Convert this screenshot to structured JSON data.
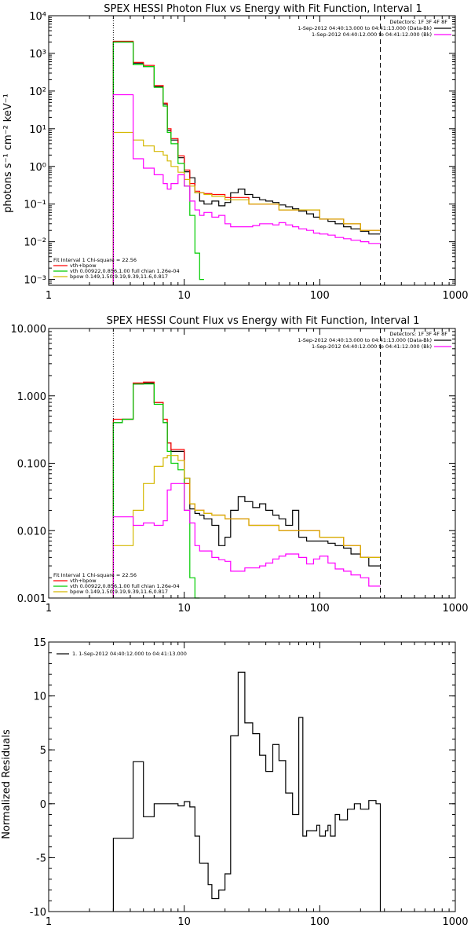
{
  "colors": {
    "total": "#ff0000",
    "vth": "#00cc00",
    "bpow": "#d4b800",
    "data": "#000000",
    "background": "#ff00ff"
  },
  "chart_data": [
    {
      "type": "line",
      "title": "SPEX HESSI Photon Flux vs Energy with Fit Function, Interval 1",
      "ylabel": "photons s⁻¹ cm⁻² keV⁻¹",
      "xlabel": "",
      "xscale": "log",
      "yscale": "log",
      "xlim": [
        1,
        1000
      ],
      "ylim": [
        0.0007,
        10000
      ],
      "xticks": [
        {
          "v": 1,
          "label": "1"
        },
        {
          "v": 10,
          "label": "10"
        },
        {
          "v": 100,
          "label": "100"
        },
        {
          "v": 1000,
          "label": "1000"
        }
      ],
      "yticks": [
        {
          "v": 0.001,
          "label": "10⁻³"
        },
        {
          "v": 0.01,
          "label": "10⁻²"
        },
        {
          "v": 0.1,
          "label": "10⁻¹"
        },
        {
          "v": 1,
          "label": "10⁰"
        },
        {
          "v": 10,
          "label": "10¹"
        },
        {
          "v": 100,
          "label": "10²"
        },
        {
          "v": 1000,
          "label": "10³"
        },
        {
          "v": 10000,
          "label": "10⁴"
        }
      ],
      "vlines": [
        {
          "x": 3.0,
          "style": "dotted"
        },
        {
          "x": 280,
          "style": "dashed"
        }
      ],
      "top_legend": {
        "detectors": "Detectors: 1F 3F 4F 8F",
        "entries": [
          {
            "text": "1-Sep-2012 04:40:13.000 to 04:41:13.000 (Data-Bk)",
            "color": "data"
          },
          {
            "text": "1-Sep-2012 04:40:12.000 to 04:41:12.000 (Bk)",
            "color": "background"
          }
        ]
      },
      "fit_legend": {
        "header": "Fit Interval 1   Chi-square = 22.56",
        "entries": [
          {
            "text": "vth+bpow",
            "color": "total"
          },
          {
            "text": "vth 0.00922,0.856,1.00  full chian 1.26e-04",
            "color": "vth"
          },
          {
            "text": "bpow 0.149,1.50,9.19,9.39,11.6,0.817",
            "color": "bpow"
          }
        ]
      },
      "series": [
        {
          "color": "data",
          "edges": [
            3,
            3.5,
            4.2,
            5,
            6,
            7,
            7.5,
            8,
            9,
            10,
            11,
            12,
            13,
            14,
            16,
            18,
            20,
            22,
            25,
            28,
            32,
            36,
            40,
            45,
            50,
            56,
            63,
            70,
            80,
            90,
            100,
            115,
            130,
            150,
            170,
            200,
            230,
            280
          ],
          "values": [
            2000,
            2000,
            550,
            450,
            130,
            45,
            9,
            5,
            1.7,
            0.72,
            0.5,
            0.2,
            0.12,
            0.1,
            0.12,
            0.09,
            0.11,
            0.2,
            0.25,
            0.18,
            0.15,
            0.13,
            0.12,
            0.11,
            0.095,
            0.085,
            0.075,
            0.065,
            0.055,
            0.045,
            0.04,
            0.035,
            0.03,
            0.025,
            0.022,
            0.019,
            0.016
          ]
        },
        {
          "color": "total",
          "edges": [
            3,
            3.5,
            4.2,
            5,
            6,
            7,
            7.5,
            8,
            9,
            10,
            11,
            12,
            13,
            14,
            16,
            20,
            30,
            50,
            100,
            150,
            200,
            280
          ],
          "values": [
            2100,
            2100,
            580,
            480,
            140,
            48,
            10,
            5.5,
            1.9,
            0.8,
            0.35,
            0.22,
            0.2,
            0.19,
            0.18,
            0.15,
            0.1,
            0.07,
            0.04,
            0.03,
            0.02
          ]
        },
        {
          "color": "vth",
          "edges": [
            3,
            3.5,
            4.2,
            5,
            6,
            7,
            7.5,
            8,
            9,
            10,
            11,
            12,
            13,
            14
          ],
          "values": [
            2000,
            2000,
            500,
            450,
            125,
            40,
            8,
            4,
            1.2,
            0.3,
            0.05,
            0.005,
            0.001
          ]
        },
        {
          "color": "bpow",
          "edges": [
            3,
            3.5,
            4.2,
            5,
            6,
            7,
            7.5,
            8,
            9,
            10,
            11,
            12,
            14,
            16,
            20,
            30,
            50,
            100,
            150,
            200,
            280
          ],
          "values": [
            8,
            8,
            5,
            3.5,
            2.5,
            2,
            1.4,
            1.0,
            0.7,
            0.45,
            0.3,
            0.2,
            0.18,
            0.16,
            0.13,
            0.1,
            0.07,
            0.04,
            0.03,
            0.02
          ]
        },
        {
          "color": "background",
          "edges": [
            3,
            3.5,
            4.2,
            5,
            6,
            7,
            7.5,
            8,
            9,
            10,
            11,
            12,
            13,
            14,
            16,
            18,
            20,
            22,
            25,
            28,
            32,
            36,
            40,
            45,
            50,
            56,
            63,
            70,
            80,
            90,
            100,
            115,
            130,
            150,
            170,
            200,
            230,
            280
          ],
          "values": [
            80,
            80,
            1.6,
            0.9,
            0.6,
            0.35,
            0.25,
            0.35,
            0.6,
            0.3,
            0.12,
            0.07,
            0.05,
            0.06,
            0.045,
            0.05,
            0.03,
            0.025,
            0.025,
            0.025,
            0.027,
            0.03,
            0.03,
            0.028,
            0.032,
            0.028,
            0.025,
            0.022,
            0.02,
            0.017,
            0.016,
            0.015,
            0.013,
            0.012,
            0.011,
            0.01,
            0.009
          ]
        }
      ]
    },
    {
      "type": "line",
      "title": "SPEX HESSI Count Flux vs Energy with Fit Function, Interval 1",
      "xlabel": "",
      "ylabel": "",
      "xscale": "log",
      "yscale": "log",
      "xlim": [
        1,
        1000
      ],
      "ylim": [
        0.001,
        10
      ],
      "xticks": [
        {
          "v": 1,
          "label": "1"
        },
        {
          "v": 10,
          "label": "10"
        },
        {
          "v": 100,
          "label": "100"
        },
        {
          "v": 1000,
          "label": "1000"
        }
      ],
      "yticks": [
        {
          "v": 0.001,
          "label": "0.001"
        },
        {
          "v": 0.01,
          "label": "0.010"
        },
        {
          "v": 0.1,
          "label": "0.100"
        },
        {
          "v": 1,
          "label": "1.000"
        },
        {
          "v": 10,
          "label": "10.000"
        }
      ],
      "vlines": [
        {
          "x": 3.0,
          "style": "dotted"
        },
        {
          "x": 280,
          "style": "dashed"
        }
      ],
      "top_legend": {
        "detectors": "Detectors: 1F 3F 4F 8F",
        "entries": [
          {
            "text": "1-Sep-2012 04:40:13.000 to 04:41:13.000 (Data-Bk)",
            "color": "data"
          },
          {
            "text": "1-Sep-2012 04:40:12.000 to 04:41:12.000 (Bk)",
            "color": "background"
          }
        ]
      },
      "fit_legend": {
        "header": "Fit Interval 1   Chi-square = 22.56",
        "entries": [
          {
            "text": "vth+bpow",
            "color": "total"
          },
          {
            "text": "vth 0.00922,0.856,1.00  full chian 1.26e-04",
            "color": "vth"
          },
          {
            "text": "bpow 0.149,1.50,9.19,9.39,11.6,0.817",
            "color": "bpow"
          }
        ]
      },
      "series": [
        {
          "color": "data",
          "edges": [
            3,
            3.5,
            4.2,
            5,
            6,
            7,
            7.5,
            8,
            9,
            10,
            11,
            12,
            13,
            14,
            16,
            18,
            20,
            22,
            25,
            28,
            32,
            36,
            40,
            45,
            50,
            56,
            63,
            70,
            80,
            90,
            100,
            115,
            130,
            150,
            170,
            200,
            230,
            280
          ],
          "values": [
            0.4,
            0.45,
            1.5,
            1.55,
            0.8,
            0.4,
            0.2,
            0.15,
            0.15,
            0.06,
            0.021,
            0.018,
            0.017,
            0.015,
            0.012,
            0.006,
            0.008,
            0.02,
            0.032,
            0.027,
            0.022,
            0.025,
            0.02,
            0.017,
            0.015,
            0.012,
            0.02,
            0.008,
            0.007,
            0.007,
            0.007,
            0.0065,
            0.006,
            0.0055,
            0.0045,
            0.004,
            0.003
          ]
        },
        {
          "color": "total",
          "edges": [
            3,
            3.5,
            4.2,
            5,
            6,
            7,
            7.5,
            8,
            9,
            10,
            11,
            12,
            14,
            16,
            20,
            30,
            50,
            100,
            150,
            200,
            280
          ],
          "values": [
            0.45,
            0.45,
            1.55,
            1.6,
            0.8,
            0.45,
            0.2,
            0.16,
            0.16,
            0.05,
            0.025,
            0.02,
            0.018,
            0.017,
            0.015,
            0.012,
            0.01,
            0.008,
            0.006,
            0.004
          ]
        },
        {
          "color": "vth",
          "edges": [
            3,
            3.5,
            4.2,
            5,
            6,
            7,
            7.5,
            8,
            9,
            10,
            11,
            12,
            13
          ],
          "values": [
            0.4,
            0.45,
            1.5,
            1.5,
            0.75,
            0.4,
            0.15,
            0.1,
            0.08,
            0.02,
            0.002,
            0.0005
          ]
        },
        {
          "color": "bpow",
          "edges": [
            3,
            3.5,
            4.2,
            5,
            6,
            7,
            7.5,
            8,
            9,
            10,
            11,
            12,
            14,
            16,
            20,
            30,
            50,
            100,
            150,
            200,
            280
          ],
          "values": [
            0.006,
            0.006,
            0.02,
            0.05,
            0.09,
            0.12,
            0.13,
            0.13,
            0.11,
            0.06,
            0.025,
            0.02,
            0.018,
            0.017,
            0.015,
            0.012,
            0.01,
            0.008,
            0.006,
            0.004
          ]
        },
        {
          "color": "background",
          "edges": [
            3,
            3.5,
            4.2,
            5,
            6,
            7,
            7.5,
            8,
            9,
            10,
            11,
            12,
            13,
            14,
            16,
            18,
            20,
            22,
            25,
            28,
            32,
            36,
            40,
            45,
            50,
            56,
            63,
            70,
            80,
            90,
            100,
            115,
            130,
            150,
            170,
            200,
            230,
            280
          ],
          "values": [
            0.016,
            0.016,
            0.012,
            0.013,
            0.012,
            0.014,
            0.04,
            0.05,
            0.05,
            0.02,
            0.013,
            0.006,
            0.005,
            0.005,
            0.004,
            0.0037,
            0.0035,
            0.0025,
            0.0025,
            0.0028,
            0.0028,
            0.003,
            0.0033,
            0.0038,
            0.0042,
            0.0045,
            0.0045,
            0.004,
            0.0032,
            0.0038,
            0.0042,
            0.0033,
            0.0027,
            0.0025,
            0.0022,
            0.002,
            0.0015
          ]
        }
      ]
    },
    {
      "type": "line",
      "title": "",
      "ylabel": "Normalized Residuals",
      "xlabel": "",
      "xscale": "log",
      "yscale": "linear",
      "xlim": [
        1,
        1000
      ],
      "ylim": [
        -10,
        15
      ],
      "xticks": [
        {
          "v": 1,
          "label": "1"
        },
        {
          "v": 10,
          "label": "10"
        },
        {
          "v": 100,
          "label": "100"
        },
        {
          "v": 1000,
          "label": "1000"
        }
      ],
      "yticks": [
        {
          "v": -10,
          "label": "-10"
        },
        {
          "v": -5,
          "label": "-5"
        },
        {
          "v": 0,
          "label": "0"
        },
        {
          "v": 5,
          "label": "5"
        },
        {
          "v": 10,
          "label": "10"
        },
        {
          "v": 15,
          "label": "15"
        }
      ],
      "legend": {
        "text": "1. 1-Sep-2012 04:40:12.000 to 04:41:13.000"
      },
      "series": [
        {
          "color": "data",
          "edges": [
            3,
            4.2,
            5,
            6,
            7,
            8,
            9,
            10,
            11,
            12,
            13,
            15,
            16,
            18,
            20,
            22,
            25,
            28,
            32,
            36,
            40,
            45,
            50,
            56,
            60,
            63,
            70,
            75,
            80,
            85,
            90,
            95,
            100,
            110,
            115,
            120,
            130,
            140,
            160,
            180,
            200,
            230,
            260,
            280
          ],
          "values": [
            -3.2,
            3.9,
            -1.2,
            0,
            0,
            0,
            -0.2,
            0.2,
            -0.3,
            -3,
            -5.5,
            -7.5,
            -8.8,
            -8,
            -6.5,
            6.3,
            12.2,
            7.5,
            6.5,
            4.5,
            3,
            5.5,
            4,
            1,
            1,
            -1,
            8,
            -3,
            -2.5,
            -2.5,
            -2.5,
            -2,
            -3,
            -2.5,
            -2,
            -3,
            -1,
            -1.5,
            -0.5,
            0,
            -0.5,
            0.3,
            0,
            -10
          ]
        }
      ]
    }
  ]
}
